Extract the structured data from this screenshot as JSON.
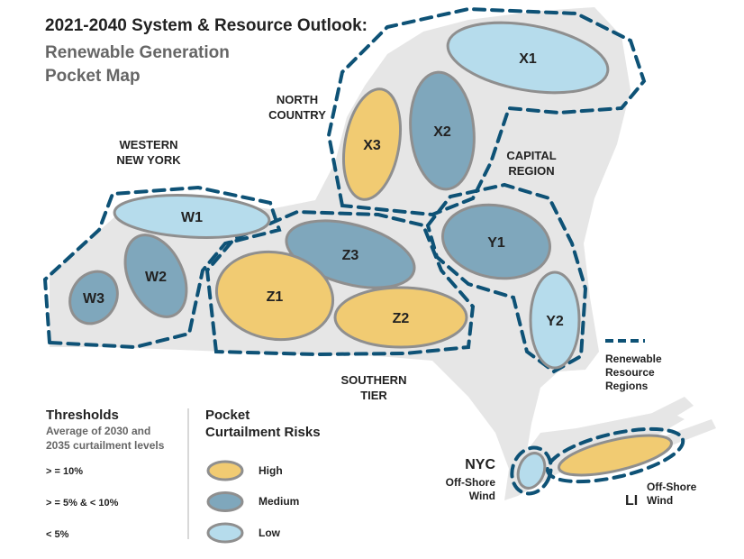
{
  "title": "2021-2040 System & Resource Outlook:",
  "subtitle_line1": "Renewable Generation",
  "subtitle_line2": "Pocket Map",
  "colors": {
    "high": "#f1cb72",
    "medium": "#7fa7bc",
    "low": "#b6dcec",
    "region_dash": "#0e5276",
    "land": "#e6e6e6",
    "pocket_stroke": "#8f8f8f"
  },
  "regions": {
    "north_country": [
      "NORTH",
      "COUNTRY"
    ],
    "western_ny": [
      "WESTERN",
      "NEW YORK"
    ],
    "capital": [
      "CAPITAL",
      "REGION"
    ],
    "southern_tier": [
      "SOUTHERN",
      "TIER"
    ],
    "nyc": "NYC",
    "nyc_wind": [
      "Off-Shore",
      "Wind"
    ],
    "li": "LI",
    "li_wind": [
      "Off-Shore",
      "Wind"
    ]
  },
  "pockets": [
    {
      "id": "X1",
      "risk": "low"
    },
    {
      "id": "X3",
      "risk": "high"
    },
    {
      "id": "X2",
      "risk": "medium"
    },
    {
      "id": "W1",
      "risk": "low"
    },
    {
      "id": "W2",
      "risk": "medium"
    },
    {
      "id": "W3",
      "risk": "medium"
    },
    {
      "id": "Z3",
      "risk": "medium"
    },
    {
      "id": "Z1",
      "risk": "high"
    },
    {
      "id": "Z2",
      "risk": "high"
    },
    {
      "id": "Y1",
      "risk": "medium"
    },
    {
      "id": "Y2",
      "risk": "low"
    },
    {
      "id": "NYC",
      "risk": "low"
    },
    {
      "id": "LI",
      "risk": "high"
    }
  ],
  "legend_regions": [
    "Renewable",
    "Resource",
    "Regions"
  ],
  "thresholds": {
    "title": "Thresholds",
    "subtitle": [
      "Average of 2030 and",
      "2035 curtailment levels"
    ],
    "items": [
      "> = 10%",
      "> = 5% & < 10%",
      "< 5%"
    ]
  },
  "risks": {
    "title": [
      "Pocket",
      "Curtailment Risks"
    ],
    "items": [
      {
        "label": "High",
        "risk": "high"
      },
      {
        "label": "Medium",
        "risk": "medium"
      },
      {
        "label": "Low",
        "risk": "low"
      }
    ]
  }
}
